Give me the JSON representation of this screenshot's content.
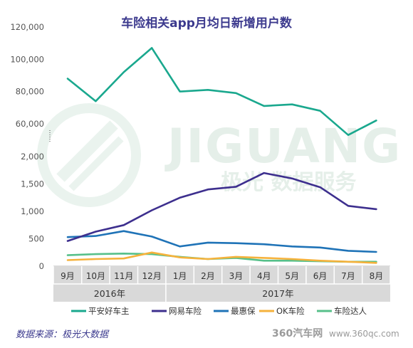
{
  "chart_data": {
    "type": "line",
    "title": "车险相关app月均日新增用户数",
    "x": [
      "9月",
      "10月",
      "11月",
      "12月",
      "1月",
      "2月",
      "3月",
      "4月",
      "5月",
      "6月",
      "7月",
      "8月"
    ],
    "periods": [
      {
        "label": "2016年",
        "from": 0,
        "to": 3
      },
      {
        "label": "2017年",
        "from": 4,
        "to": 11
      }
    ],
    "upper_axis": {
      "ylim": [
        50000,
        120000
      ],
      "ticks": [
        "120,000",
        "100,000",
        "80,000",
        "60,000"
      ]
    },
    "lower_axis": {
      "ylim": [
        0,
        2000
      ],
      "ticks": [
        "2,000",
        "1,500",
        "1,000",
        "500",
        "0"
      ]
    },
    "series": [
      {
        "name": "平安好车主",
        "axis": "upper",
        "color": "#1aa88e",
        "values": [
          88000,
          74000,
          92000,
          107000,
          80000,
          81000,
          79000,
          71000,
          72000,
          68000,
          53000,
          62000
        ]
      },
      {
        "name": "网易车险",
        "axis": "lower",
        "color": "#3d2f8e",
        "values": [
          460,
          630,
          750,
          1020,
          1250,
          1400,
          1450,
          1700,
          1600,
          1440,
          1100,
          1040
        ]
      },
      {
        "name": "最惠保",
        "axis": "lower",
        "color": "#1f73b7",
        "values": [
          530,
          550,
          640,
          540,
          360,
          430,
          420,
          400,
          360,
          340,
          280,
          260
        ]
      },
      {
        "name": "OK车险",
        "axis": "lower",
        "color": "#f5b23c",
        "values": [
          110,
          130,
          140,
          250,
          160,
          130,
          170,
          150,
          130,
          100,
          80,
          60
        ]
      },
      {
        "name": "车险达人",
        "axis": "lower",
        "color": "#57c08a",
        "values": [
          200,
          220,
          230,
          220,
          170,
          130,
          150,
          100,
          100,
          90,
          80,
          80
        ]
      }
    ],
    "legend_position": "bottom",
    "grid": false
  },
  "source_text": "数据来源：极光大数据",
  "watermark": {
    "brand": "JIGUANG",
    "tagline": "极光 数据服务"
  },
  "site_mark": {
    "logo": "360汽车网",
    "url": "www.360qc.com"
  }
}
